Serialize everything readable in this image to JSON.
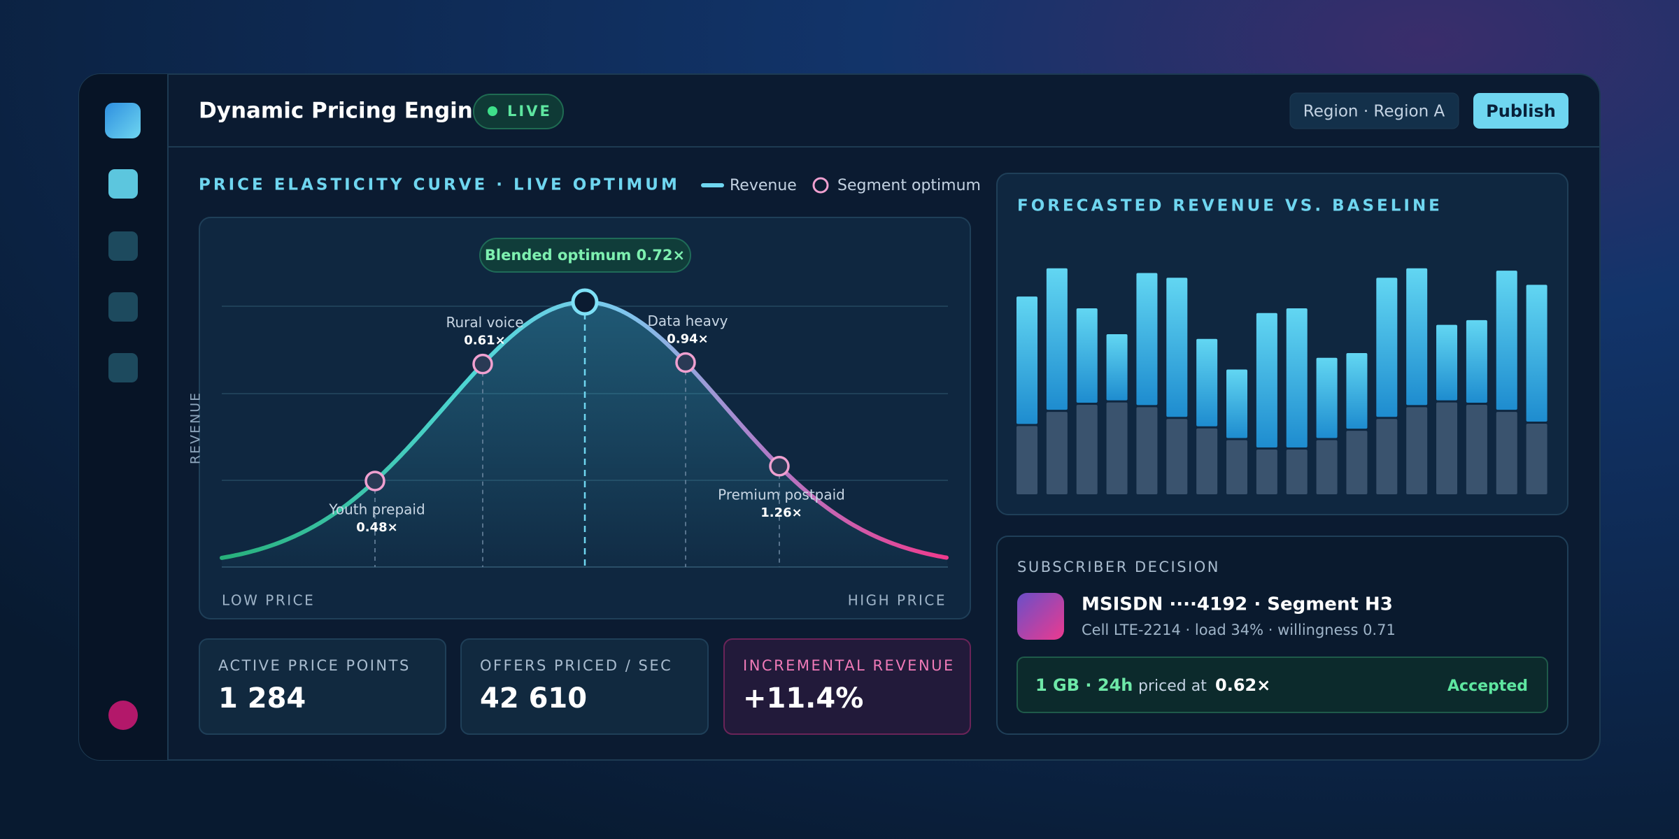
{
  "header": {
    "title": "Dynamic Pricing Engine",
    "status": "LIVE",
    "region": "Region · Region A",
    "action": "Publish"
  },
  "elasticity": {
    "title": "PRICE ELASTICITY CURVE · LIVE OPTIMUM",
    "legend": [
      "Revenue",
      "Segment optimum"
    ],
    "axis_label": "REVENUE",
    "x_labels": [
      "LOW PRICE",
      "HIGH PRICE"
    ],
    "optimum": "Blended optimum 0.72×",
    "segments": [
      {
        "name": "Youth prepaid",
        "multiplier": "0.48×"
      },
      {
        "name": "Rural voice",
        "multiplier": "0.61×"
      },
      {
        "name": "Data heavy",
        "multiplier": "0.94×"
      },
      {
        "name": "Premium postpaid",
        "multiplier": "1.26×"
      }
    ]
  },
  "stats": [
    {
      "label": "ACTIVE PRICE POINTS",
      "value": "1 284"
    },
    {
      "label": "OFFERS PRICED / SEC",
      "value": "42 610"
    },
    {
      "label": "INCREMENTAL REVENUE",
      "value": "+11.4%"
    }
  ],
  "chart_data": {
    "type": "bar",
    "title": "FORECASTED REVENUE VS. BASELINE",
    "stacked": true,
    "ylim": [
      0,
      100
    ],
    "series": [
      {
        "color": "#3a536e",
        "values": [
          29,
          35,
          38,
          39,
          37,
          32,
          28,
          23,
          19,
          19,
          23,
          27,
          32,
          37,
          39,
          38,
          35,
          30
        ]
      },
      {
        "color": "#3fb8e6",
        "values": [
          55,
          61,
          41,
          29,
          57,
          60,
          38,
          30,
          58,
          60,
          35,
          33,
          60,
          59,
          33,
          36,
          60,
          59
        ]
      }
    ]
  },
  "subscriber": {
    "title": "SUBSCRIBER DECISION",
    "id": "MSISDN ····4192 · Segment H3",
    "details": "Cell LTE-2214 · load 34% · willingness 0.71",
    "offer": {
      "plan": "1 GB · 24h",
      "text": "priced at",
      "multiplier": "0.62×",
      "status": "Accepted"
    }
  }
}
